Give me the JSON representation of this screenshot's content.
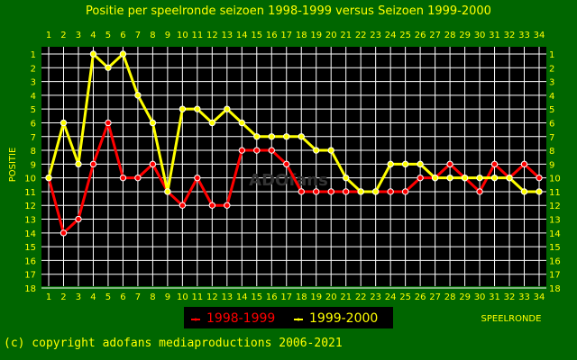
{
  "chart_data": {
    "type": "line",
    "title": "Positie per speelronde seizoen 1998-1999 versus Seizoen 1999-2000",
    "xlabel": "SPEELRONDE",
    "ylabel": "POSITIE",
    "x": [
      1,
      2,
      3,
      4,
      5,
      6,
      7,
      8,
      9,
      10,
      11,
      12,
      13,
      14,
      15,
      16,
      17,
      18,
      19,
      20,
      21,
      22,
      23,
      24,
      25,
      26,
      27,
      28,
      29,
      30,
      31,
      32,
      33,
      34
    ],
    "xlim": [
      1,
      34
    ],
    "ylim": [
      1,
      18
    ],
    "y_inverted": true,
    "y_ticks": [
      1,
      2,
      3,
      4,
      5,
      6,
      7,
      8,
      9,
      10,
      11,
      12,
      13,
      14,
      15,
      16,
      17,
      18
    ],
    "grid": true,
    "legend_position": "bottom-left",
    "series": [
      {
        "name": "1998-1999",
        "color": "#ff0000",
        "values": [
          10,
          14,
          13,
          9,
          6,
          10,
          10,
          9,
          11,
          12,
          10,
          12,
          12,
          8,
          8,
          8,
          9,
          11,
          11,
          11,
          11,
          11,
          11,
          11,
          11,
          10,
          10,
          9,
          10,
          11,
          9,
          10,
          9,
          10
        ]
      },
      {
        "name": "1999-2000",
        "color": "#ffff00",
        "values": [
          10,
          6,
          9,
          1,
          2,
          1,
          4,
          6,
          11,
          5,
          5,
          6,
          5,
          6,
          7,
          7,
          7,
          7,
          8,
          8,
          10,
          11,
          11,
          9,
          9,
          9,
          10,
          10,
          10,
          10,
          10,
          10,
          11,
          11
        ]
      }
    ]
  },
  "watermark": "ADOfans",
  "copyright": "(c) copyright adofans mediaproductions 2006-2021",
  "colors": {
    "background": "#006600",
    "plot_area": "#000000",
    "grid": "#ffffff",
    "text": "#ffff00"
  }
}
